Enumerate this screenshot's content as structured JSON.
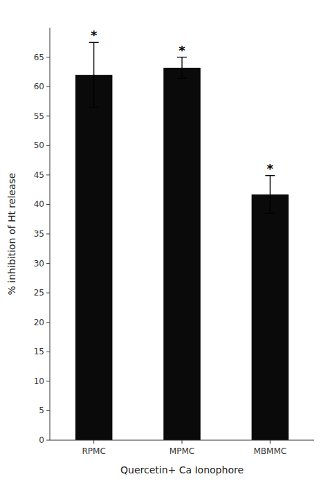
{
  "chart_data": {
    "type": "bar",
    "categories": [
      "RPMC",
      "MPMC",
      "MBMMC"
    ],
    "values": [
      62.0,
      63.2,
      41.7
    ],
    "errors": [
      5.5,
      1.8,
      3.2
    ],
    "annotations": [
      "*",
      "*",
      "*"
    ],
    "color": "#0a0a0a",
    "xlabel": "Quercetin+ Ca Ionophore",
    "ylabel": "% inhibition of Ht release",
    "ylim": [
      0,
      70
    ],
    "yticks": [
      0,
      5,
      10,
      15,
      20,
      25,
      30,
      35,
      40,
      45,
      50,
      55,
      60,
      65
    ],
    "grid": false
  }
}
